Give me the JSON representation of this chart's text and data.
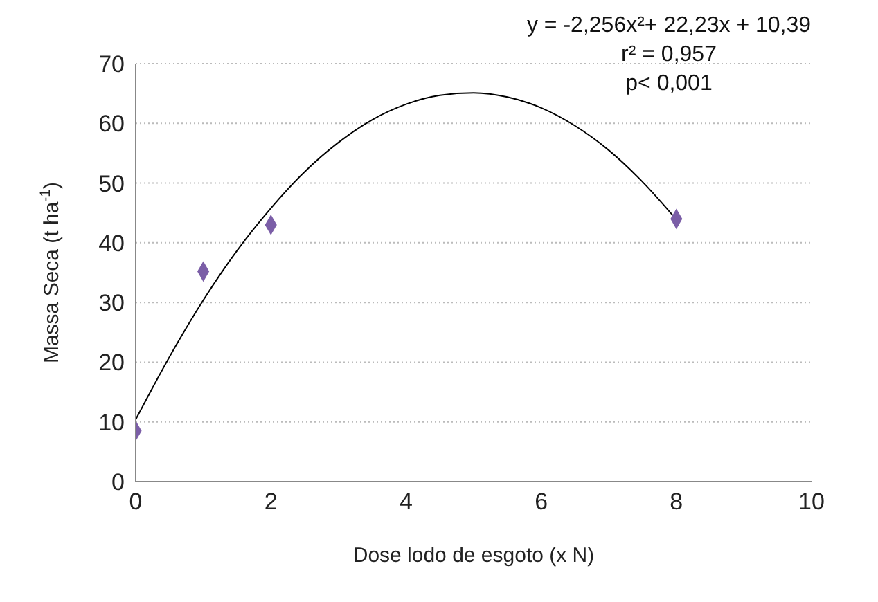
{
  "chart_data": {
    "type": "scatter",
    "xlabel": "Dose lodo de esgoto (x N)",
    "ylabel": "Massa Seca (t ha$^{-1}$)",
    "xlim": [
      0,
      10
    ],
    "xticks": [
      0,
      2,
      4,
      6,
      8,
      10
    ],
    "ylim": [
      0,
      70
    ],
    "yticks": [
      0,
      10,
      20,
      30,
      40,
      50,
      60,
      70
    ],
    "grid": "y",
    "marker": "diamond",
    "annotations": [
      "y = -2,256x²+ 22,23x + 10,39",
      "r² = 0,957",
      "p< 0,001"
    ],
    "series": [
      {
        "color": "#7b5ea7",
        "x": [
          0,
          1,
          2,
          8
        ],
        "values": [
          8.5,
          35.2,
          43,
          44
        ]
      },
      {
        "type": "line",
        "color": "#000000",
        "marker": "none",
        "x": [
          0,
          0.5,
          1,
          1.5,
          2,
          2.5,
          3,
          3.5,
          4,
          4.5,
          5,
          5.5,
          6,
          6.5,
          7,
          7.5,
          8
        ],
        "values": [
          10.4,
          20.9,
          30.4,
          38.7,
          45.8,
          51.9,
          56.8,
          60.6,
          63.2,
          64.7,
          65.1,
          64.4,
          62.6,
          59.6,
          55.5,
          50.2,
          43.9
        ]
      }
    ]
  }
}
